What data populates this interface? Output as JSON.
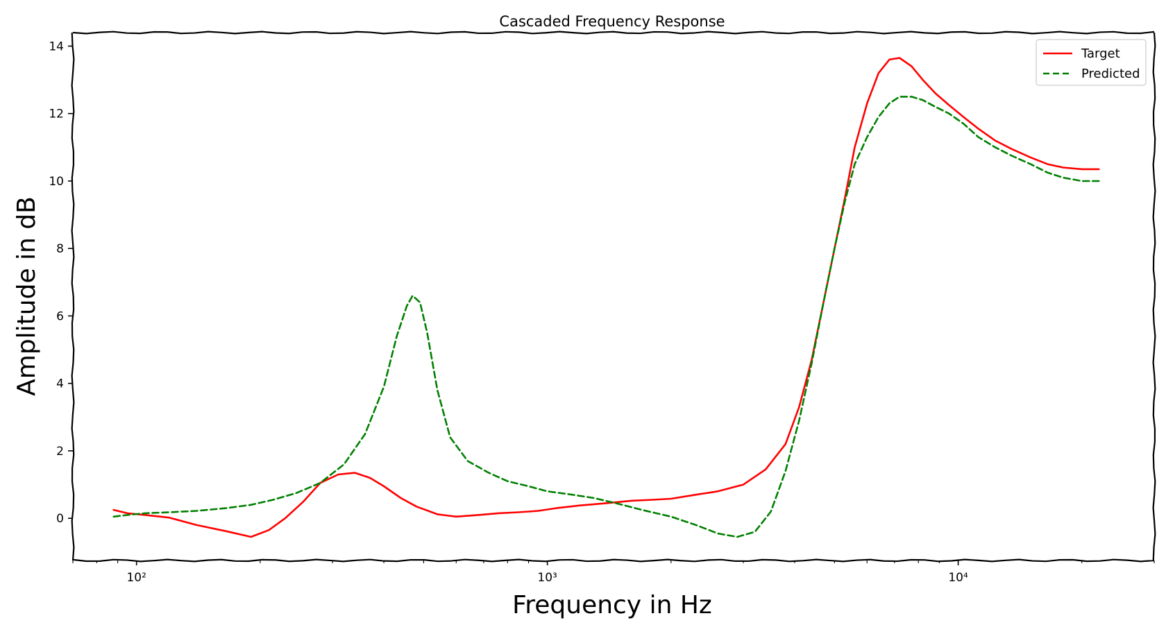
{
  "chart_data": {
    "type": "line",
    "title": "Cascaded Frequency Response",
    "xlabel": "Frequency in Hz",
    "ylabel": "Amplitude in dB",
    "xscale": "log",
    "xlim": [
      70,
      30000
    ],
    "ylim": [
      -1.25,
      14.4
    ],
    "xticks": [
      {
        "value": 100,
        "label": "10²"
      },
      {
        "value": 1000,
        "label": "10³"
      },
      {
        "value": 10000,
        "label": "10⁴"
      }
    ],
    "yticks": [
      0,
      2,
      4,
      6,
      8,
      10,
      12,
      14
    ],
    "legend_position": "top-right",
    "grid": false,
    "series": [
      {
        "name": "Target",
        "color": "#ff0000",
        "dash": "solid",
        "x": [
          88,
          95,
          105,
          120,
          140,
          165,
          190,
          210,
          230,
          255,
          280,
          310,
          340,
          370,
          400,
          440,
          480,
          540,
          600,
          680,
          760,
          850,
          950,
          1050,
          1200,
          1400,
          1600,
          1800,
          2000,
          2300,
          2600,
          3000,
          3400,
          3800,
          4100,
          4400,
          4700,
          5000,
          5300,
          5600,
          6000,
          6400,
          6800,
          7200,
          7700,
          8200,
          8800,
          9500,
          10300,
          11200,
          12300,
          13500,
          15000,
          16500,
          18000,
          20000,
          22000
        ],
        "y": [
          0.25,
          0.15,
          0.1,
          0.02,
          -0.2,
          -0.38,
          -0.55,
          -0.35,
          0.0,
          0.5,
          1.05,
          1.3,
          1.35,
          1.2,
          0.95,
          0.6,
          0.35,
          0.12,
          0.05,
          0.1,
          0.15,
          0.18,
          0.22,
          0.3,
          0.38,
          0.45,
          0.52,
          0.55,
          0.58,
          0.7,
          0.8,
          1.0,
          1.45,
          2.2,
          3.3,
          4.7,
          6.4,
          8.0,
          9.5,
          11.0,
          12.3,
          13.2,
          13.6,
          13.65,
          13.4,
          13.0,
          12.6,
          12.25,
          11.9,
          11.55,
          11.2,
          10.95,
          10.7,
          10.5,
          10.4,
          10.35,
          10.35
        ]
      },
      {
        "name": "Predicted",
        "color": "#008000",
        "dash": "dashed",
        "x": [
          88,
          95,
          105,
          120,
          140,
          165,
          190,
          215,
          245,
          280,
          320,
          360,
          400,
          430,
          455,
          470,
          490,
          510,
          540,
          580,
          640,
          720,
          800,
          900,
          1000,
          1150,
          1300,
          1500,
          1700,
          2000,
          2300,
          2600,
          2900,
          3200,
          3500,
          3800,
          4100,
          4400,
          4700,
          5000,
          5300,
          5600,
          6000,
          6400,
          6800,
          7200,
          7700,
          8200,
          8800,
          9500,
          10300,
          11200,
          12300,
          13500,
          15000,
          16500,
          18000,
          20000,
          22000
        ],
        "y": [
          0.05,
          0.1,
          0.15,
          0.18,
          0.22,
          0.3,
          0.4,
          0.55,
          0.75,
          1.05,
          1.6,
          2.5,
          3.9,
          5.4,
          6.3,
          6.6,
          6.4,
          5.5,
          3.8,
          2.4,
          1.7,
          1.35,
          1.1,
          0.95,
          0.8,
          0.7,
          0.6,
          0.42,
          0.25,
          0.05,
          -0.2,
          -0.45,
          -0.55,
          -0.4,
          0.2,
          1.4,
          2.9,
          4.6,
          6.4,
          8.0,
          9.4,
          10.5,
          11.3,
          11.9,
          12.3,
          12.5,
          12.5,
          12.4,
          12.2,
          12.0,
          11.7,
          11.3,
          11.0,
          10.75,
          10.5,
          10.25,
          10.1,
          10.0,
          10.0
        ]
      }
    ]
  }
}
